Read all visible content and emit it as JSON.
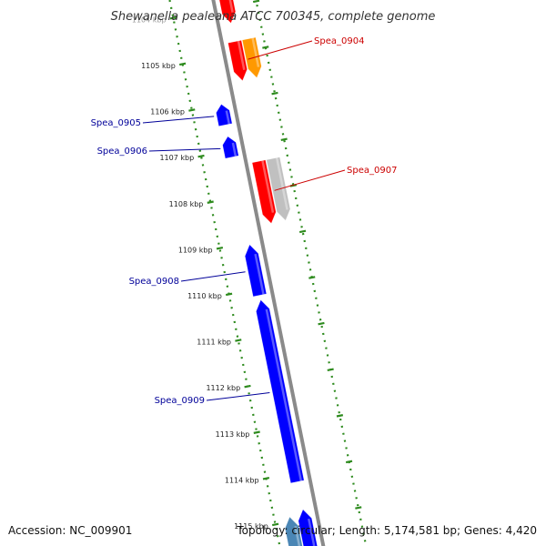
{
  "title": "Shewanella pealeana ATCC 700345, complete genome",
  "footer": {
    "accession": "Accession: NC_009901",
    "summary": "Topology: circular; Length: 5,174,581 bp; Genes: 4,420"
  },
  "colors": {
    "backbone": "#8a8a8a",
    "tick": "#2e8b1e",
    "forward_cds": "#ff0000",
    "reverse_cds": "#0000ff",
    "forward_label": "#cc0000",
    "reverse_label": "#000099",
    "orange": "#ff9900",
    "grey": "#c0c0c0",
    "steel": "#4a86b5"
  },
  "axis": {
    "unit": "kbp",
    "ticks": [
      {
        "kb": 1104,
        "label": "1104 kbp"
      },
      {
        "kb": 1105,
        "label": "1105 kbp"
      },
      {
        "kb": 1106,
        "label": "1106 kbp"
      },
      {
        "kb": 1107,
        "label": "1107 kbp"
      },
      {
        "kb": 1108,
        "label": "1108 kbp"
      },
      {
        "kb": 1109,
        "label": "1109 kbp"
      },
      {
        "kb": 1110,
        "label": "1110 kbp"
      },
      {
        "kb": 1111,
        "label": "1111 kbp"
      },
      {
        "kb": 1112,
        "label": "1112 kbp"
      },
      {
        "kb": 1113,
        "label": "1113 kbp"
      },
      {
        "kb": 1114,
        "label": "1114 kbp"
      },
      {
        "kb": 1115,
        "label": "1115 kbp"
      }
    ]
  },
  "features": [
    {
      "name": "",
      "strand": "forward",
      "color_key": "forward_cds",
      "start_kb": 1103.7,
      "end_kb": 1104.35
    },
    {
      "name": "Spea_0904",
      "strand": "forward",
      "color_key": "forward_cds",
      "start_kb": 1104.75,
      "end_kb": 1105.6,
      "labeled": true
    },
    {
      "name": "",
      "strand": "forward_outer",
      "color_key": "orange",
      "start_kb": 1104.75,
      "end_kb": 1105.6
    },
    {
      "name": "Spea_0905",
      "strand": "reverse",
      "color_key": "reverse_cds",
      "start_kb": 1106.0,
      "end_kb": 1106.45,
      "labeled": true
    },
    {
      "name": "Spea_0906",
      "strand": "reverse",
      "color_key": "reverse_cds",
      "start_kb": 1106.7,
      "end_kb": 1107.15,
      "labeled": true
    },
    {
      "name": "Spea_0907",
      "strand": "forward",
      "color_key": "forward_cds",
      "start_kb": 1107.35,
      "end_kb": 1108.7,
      "labeled": true
    },
    {
      "name": "",
      "strand": "forward_outer",
      "color_key": "grey",
      "start_kb": 1107.35,
      "end_kb": 1108.7
    },
    {
      "name": "Spea_0908",
      "strand": "reverse",
      "color_key": "reverse_cds",
      "start_kb": 1109.05,
      "end_kb": 1110.15,
      "labeled": true
    },
    {
      "name": "Spea_0909",
      "strand": "reverse",
      "color_key": "reverse_cds",
      "start_kb": 1110.25,
      "end_kb": 1114.2,
      "labeled": true
    },
    {
      "name": "",
      "strand": "reverse_inner",
      "color_key": "steel",
      "start_kb": 1114.9,
      "end_kb": 1115.9
    },
    {
      "name": "",
      "strand": "reverse",
      "color_key": "reverse_cds",
      "start_kb": 1114.8,
      "end_kb": 1115.9
    }
  ],
  "labels": [
    {
      "text": "Spea_0904",
      "side": "right",
      "color_key": "forward_label"
    },
    {
      "text": "Spea_0905",
      "side": "left",
      "color_key": "reverse_label"
    },
    {
      "text": "Spea_0906",
      "side": "left",
      "color_key": "reverse_label"
    },
    {
      "text": "Spea_0907",
      "side": "right",
      "color_key": "forward_label"
    },
    {
      "text": "Spea_0908",
      "side": "left",
      "color_key": "reverse_label"
    },
    {
      "text": "Spea_0909",
      "side": "left",
      "color_key": "reverse_label"
    }
  ]
}
